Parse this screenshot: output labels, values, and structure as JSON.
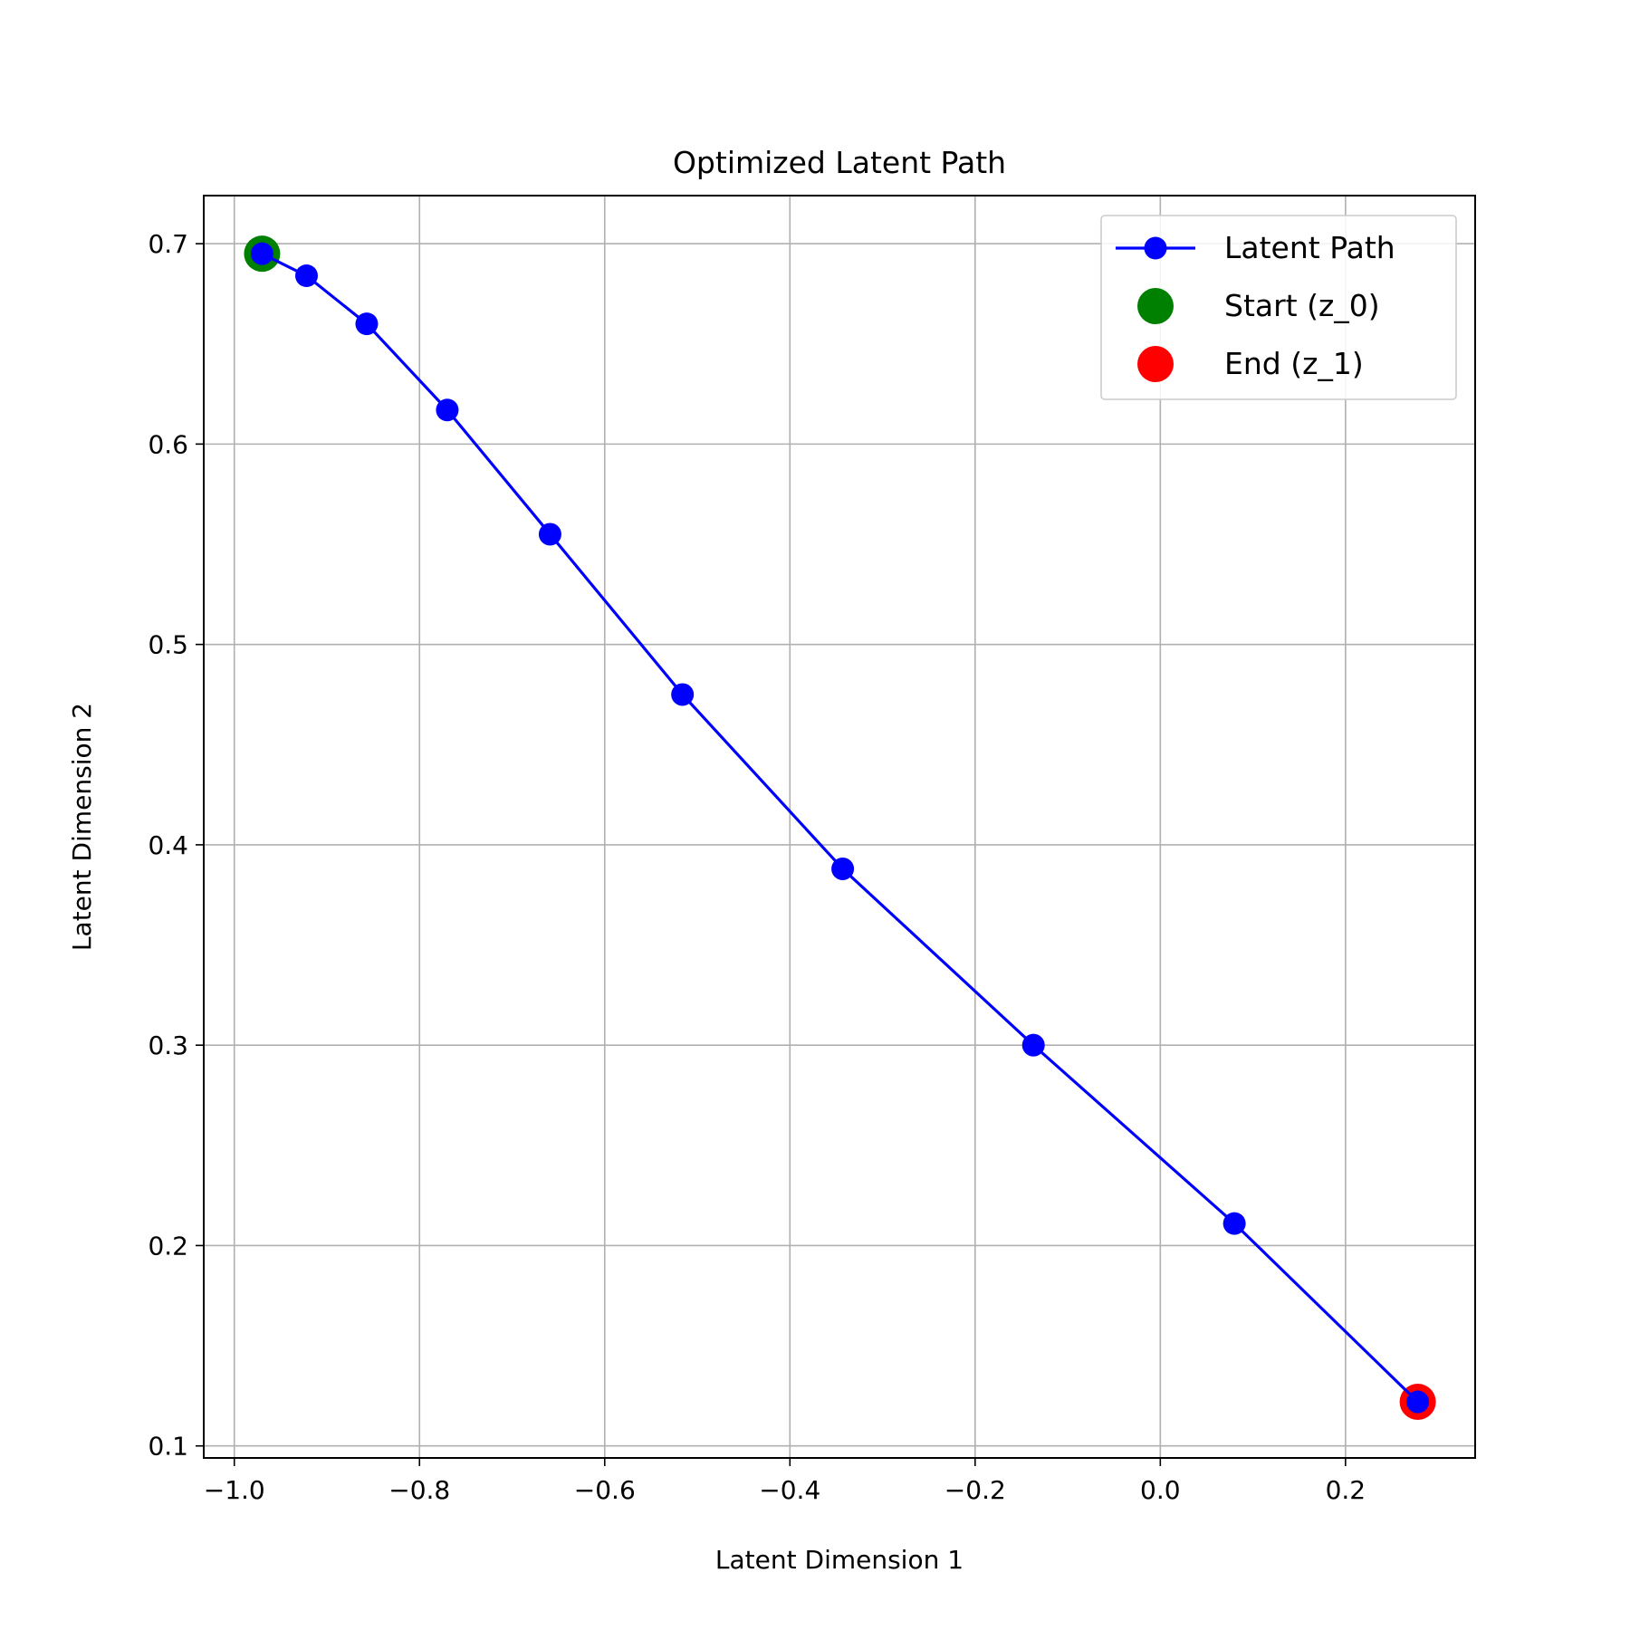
{
  "chart_data": {
    "type": "line",
    "title": "Optimized Latent Path",
    "xlabel": "Latent Dimension 1",
    "ylabel": "Latent Dimension 2",
    "xlim": [
      -1.033,
      0.34
    ],
    "ylim": [
      0.094,
      0.724
    ],
    "xticks": [
      -1.0,
      -0.8,
      -0.6,
      -0.4,
      -0.2,
      0.0,
      0.2
    ],
    "xtick_labels": [
      "−1.0",
      "−0.8",
      "−0.6",
      "−0.4",
      "−0.2",
      "0.0",
      "0.2"
    ],
    "yticks": [
      0.1,
      0.2,
      0.3,
      0.4,
      0.5,
      0.6,
      0.7
    ],
    "ytick_labels": [
      "0.1",
      "0.2",
      "0.3",
      "0.4",
      "0.5",
      "0.6",
      "0.7"
    ],
    "grid": true,
    "legend_position": "top-right",
    "series": [
      {
        "name": "Latent Path",
        "color": "#0000ff",
        "kind": "line-markers",
        "x": [
          -0.97,
          -0.922,
          -0.857,
          -0.77,
          -0.659,
          -0.516,
          -0.343,
          -0.137,
          0.08,
          0.278
        ],
        "y": [
          0.695,
          0.684,
          0.66,
          0.617,
          0.555,
          0.475,
          0.388,
          0.3,
          0.211,
          0.122
        ]
      },
      {
        "name": "Start (z_0)",
        "color": "#008000",
        "kind": "scatter",
        "x": [
          -0.97
        ],
        "y": [
          0.695
        ]
      },
      {
        "name": "End (z_1)",
        "color": "#ff0000",
        "kind": "scatter",
        "x": [
          0.278
        ],
        "y": [
          0.122
        ]
      }
    ],
    "legend_labels": [
      "Latent Path",
      "Start (z_0)",
      "End (z_1)"
    ]
  }
}
